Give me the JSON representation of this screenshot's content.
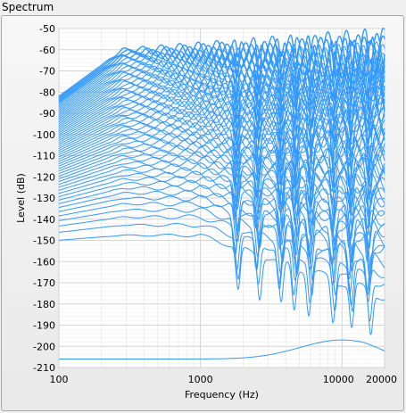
{
  "window": {
    "title": "Spectrum"
  },
  "chart_data": {
    "type": "line",
    "xlabel": "Frequency (Hz)",
    "ylabel": "Level (dB)",
    "xscale": "log",
    "xlim": [
      100,
      20000
    ],
    "ylim": [
      -210,
      -50
    ],
    "grid": true,
    "x_ticks": [
      {
        "value": 100,
        "label": "100"
      },
      {
        "value": 1000,
        "label": "1000"
      },
      {
        "value": 10000,
        "label": "10000"
      },
      {
        "value": 20000,
        "label": "20000"
      }
    ],
    "y_ticks": [
      -50,
      -60,
      -70,
      -80,
      -90,
      -100,
      -110,
      -120,
      -130,
      -140,
      -150,
      -160,
      -170,
      -180,
      -190,
      -200,
      -210
    ],
    "colors": {
      "series": "#3399ff",
      "plot_bg": "#ffffff",
      "grid": "#d4d4d4"
    },
    "series_count": 60,
    "series_summary": [
      {
        "x": [
          100,
          300,
          1000,
          3000,
          10000,
          20000
        ],
        "y": [
          -206,
          -206,
          -205,
          -201,
          -197,
          -203
        ]
      },
      {
        "x": [
          100,
          300,
          1000,
          3000,
          10000,
          20000
        ],
        "y": [
          -158,
          -158,
          -159,
          -164,
          -176,
          -178
        ]
      },
      {
        "x": [
          100,
          300,
          1000,
          3000,
          10000,
          20000
        ],
        "y": [
          -142,
          -142,
          -143,
          -148,
          -165,
          -175
        ]
      },
      {
        "x": [
          100,
          300,
          1000,
          3000,
          10000,
          20000
        ],
        "y": [
          -80,
          -55,
          -58,
          -58,
          -53,
          -68
        ]
      }
    ]
  }
}
